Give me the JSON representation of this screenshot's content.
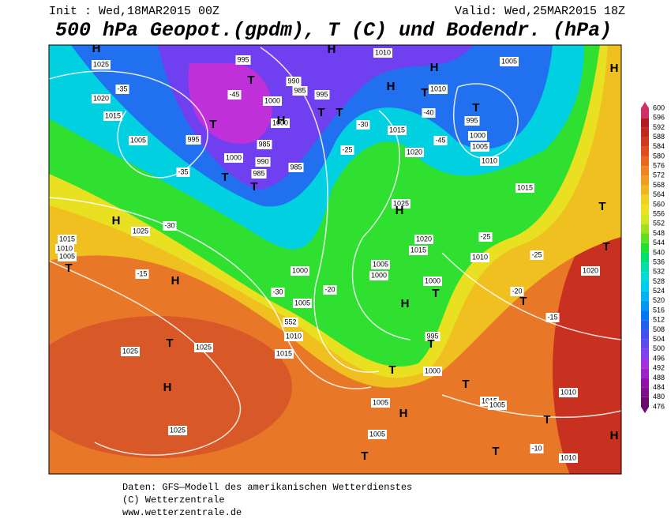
{
  "header": {
    "init": "Init : Wed,18MAR2015 00Z",
    "valid": "Valid: Wed,25MAR2015 18Z",
    "title": "500 hPa Geopot.(gpdm), T (C) und Bodendr. (hPa)"
  },
  "legend": {
    "values": [
      476,
      480,
      484,
      488,
      492,
      496,
      500,
      504,
      508,
      512,
      516,
      520,
      524,
      528,
      532,
      536,
      540,
      544,
      548,
      552,
      556,
      560,
      564,
      568,
      572,
      576,
      580,
      584,
      588,
      592,
      596,
      600
    ],
    "colors": [
      "#6a0a6a",
      "#80108a",
      "#9010a8",
      "#a020c8",
      "#a030e0",
      "#8040f0",
      "#6048f0",
      "#4050f0",
      "#2060f0",
      "#0078f0",
      "#0098f0",
      "#00b4f0",
      "#00ccf0",
      "#00dcd8",
      "#00e0a8",
      "#00e070",
      "#20e030",
      "#60e020",
      "#a0e020",
      "#d0e820",
      "#f0e020",
      "#f0d020",
      "#f0b820",
      "#f09c20",
      "#f08420",
      "#e86820",
      "#e04c20",
      "#d03820",
      "#c02820",
      "#b01c20",
      "#d0306a"
    ]
  },
  "map_labels": [
    "1025",
    "1020",
    "1015",
    "1005",
    "995",
    "990",
    "985",
    "995",
    "1000",
    "1000",
    "995",
    "985",
    "990",
    "985",
    "985",
    "1000",
    "-45",
    "-35",
    "-35",
    "-30",
    "-25",
    "1010",
    "1005",
    "1010",
    "-40",
    "995",
    "1000",
    "1005",
    "1010",
    "1015",
    "1020",
    "-45",
    "1015",
    "1025",
    "1025",
    "-30",
    "1015",
    "1010",
    "1005",
    "-15",
    "1000",
    "-30",
    "1005",
    "552",
    "1010",
    "1015",
    "1025",
    "1025",
    "1025",
    "1020",
    "-20",
    "1005",
    "1000",
    "1000",
    "995",
    "1000",
    "1005",
    "1005",
    "1010",
    "1015",
    "1005",
    "1010",
    "-10",
    "-15",
    "-20",
    "1020",
    "1015",
    "1010",
    "-25",
    "-25",
    "H",
    "H",
    "H",
    "H",
    "T",
    "T",
    "T",
    "T",
    "T",
    "T",
    "T",
    "T",
    "H",
    "H",
    "T",
    "T",
    "H",
    "H",
    "T",
    "T",
    "T",
    "H",
    "T",
    "T",
    "T",
    "T",
    "T",
    "T",
    "H",
    "H",
    "H",
    "T",
    "H"
  ],
  "footer": {
    "source": "Daten: GFS—Modell des amerikanischen Wetterdienstes",
    "copyright": "(C) Wetterzentrale",
    "url": "www.wetterzentrale.de"
  }
}
